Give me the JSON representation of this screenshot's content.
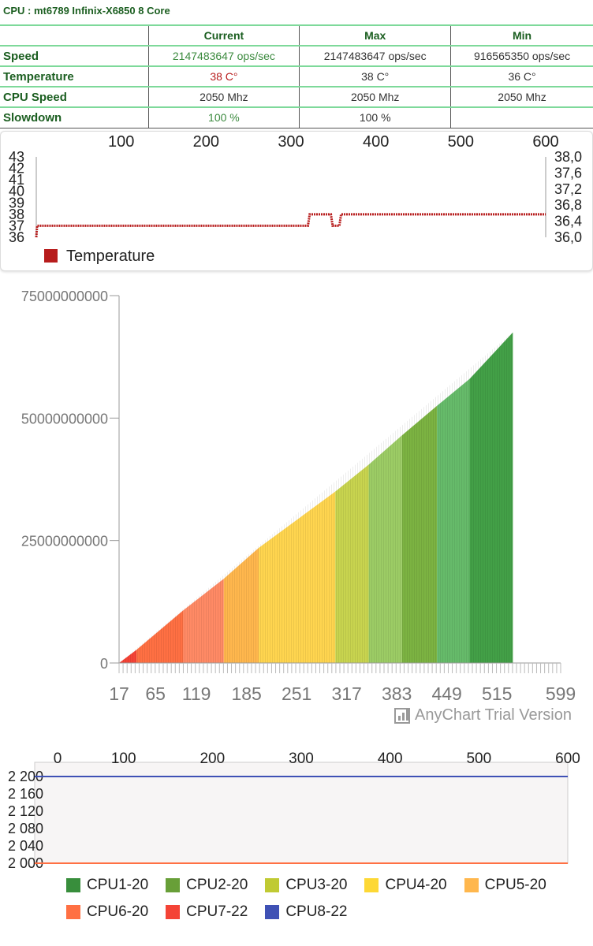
{
  "header": {
    "title": "CPU : mt6789 Infinix-X6850 8 Core"
  },
  "table": {
    "columns": [
      "",
      "Current",
      "Max",
      "Min"
    ],
    "rows": [
      {
        "label": "Speed",
        "current": "2147483647 ops/sec",
        "max": "2147483647 ops/sec",
        "min": "916565350 ops/sec"
      },
      {
        "label": "Temperature",
        "current": "38 C°",
        "max": "38 C°",
        "min": "36 C°"
      },
      {
        "label": "CPU Speed",
        "current": "2050 Mhz",
        "max": "2050 Mhz",
        "min": "2050 Mhz"
      },
      {
        "label": "Slowdown",
        "current": "100 %",
        "max": "100 %",
        "min": ""
      }
    ]
  },
  "watermark": {
    "text": "AnyChart Trial Version"
  },
  "chart_data": [
    {
      "type": "line",
      "x_ticks": [
        "100",
        "200",
        "300",
        "400",
        "500",
        "600"
      ],
      "xlim": [
        0,
        600
      ],
      "y_left_ticks": [
        "36",
        "37",
        "38",
        "39",
        "40",
        "41",
        "42",
        "43"
      ],
      "ylim_left": [
        36,
        43
      ],
      "y_right_ticks": [
        "36,0",
        "36,4",
        "36,8",
        "37,2",
        "37,6",
        "38,0"
      ],
      "ylim_right": [
        36.0,
        38.0
      ],
      "series": [
        {
          "name": "Temperature",
          "color": "#b71c1c",
          "points": [
            [
              0,
              36
            ],
            [
              1,
              37
            ],
            [
              320,
              37
            ],
            [
              322,
              38
            ],
            [
              347,
              38
            ],
            [
              349,
              37
            ],
            [
              357,
              37
            ],
            [
              359,
              38
            ],
            [
              600,
              38
            ]
          ]
        }
      ],
      "grid": false,
      "legend": "bottom-left"
    },
    {
      "type": "area",
      "x_ticks": [
        "17",
        "65",
        "119",
        "185",
        "251",
        "317",
        "383",
        "449",
        "515",
        "599"
      ],
      "xlim": [
        17,
        599
      ],
      "y_ticks": [
        "0",
        "25000000000",
        "50000000000",
        "75000000000"
      ],
      "ylim": [
        0,
        75000000000
      ],
      "series": [
        {
          "name": "CPU7-22",
          "color": "#f44336",
          "x": [
            17,
            40
          ],
          "values": [
            0,
            2700000000
          ]
        },
        {
          "name": "CPU6-20",
          "color": "#ff7043",
          "x": [
            40,
            102
          ],
          "values": [
            2700000000,
            10800000000
          ]
        },
        {
          "name": "CPU6-20",
          "color": "#ff8a65",
          "x": [
            102,
            155
          ],
          "values": [
            10800000000,
            17200000000
          ]
        },
        {
          "name": "CPU5-20",
          "color": "#ffb74d",
          "x": [
            155,
            201
          ],
          "values": [
            17200000000,
            23500000000
          ]
        },
        {
          "name": "CPU4-20",
          "color": "#ffd54f",
          "x": [
            201,
            302
          ],
          "values": [
            23500000000,
            35000000000
          ]
        },
        {
          "name": "CPU3-20",
          "color": "#c8d44f",
          "x": [
            302,
            346
          ],
          "values": [
            35000000000,
            40500000000
          ]
        },
        {
          "name": "CPU2-20",
          "color": "#9ccc65",
          "x": [
            346,
            390
          ],
          "values": [
            40500000000,
            46500000000
          ]
        },
        {
          "name": "CPU2-20",
          "color": "#7cb342",
          "x": [
            390,
            436
          ],
          "values": [
            46500000000,
            52500000000
          ]
        },
        {
          "name": "CPU1-20",
          "color": "#66bb6a",
          "x": [
            436,
            479
          ],
          "values": [
            52500000000,
            58000000000
          ]
        },
        {
          "name": "CPU1-20",
          "color": "#43a047",
          "x": [
            479,
            536
          ],
          "values": [
            58000000000,
            67500000000
          ]
        }
      ],
      "grid": false
    },
    {
      "type": "line",
      "x_ticks": [
        "0",
        "100",
        "200",
        "300",
        "400",
        "500",
        "600"
      ],
      "xlim": [
        0,
        600
      ],
      "y_ticks": [
        "2 000",
        "2 040",
        "2 080",
        "2 120",
        "2 160",
        "2 200"
      ],
      "ylim": [
        2000,
        2200
      ],
      "series": [
        {
          "name": "CPU1-20",
          "color": "#388e3c",
          "values": [
            2000,
            2000
          ]
        },
        {
          "name": "CPU2-20",
          "color": "#689f38",
          "values": [
            2000,
            2000
          ]
        },
        {
          "name": "CPU3-20",
          "color": "#c0ca33",
          "values": [
            2000,
            2000
          ]
        },
        {
          "name": "CPU4-20",
          "color": "#fdd835",
          "values": [
            2000,
            2000
          ]
        },
        {
          "name": "CPU5-20",
          "color": "#ffb74d",
          "values": [
            2000,
            2000
          ]
        },
        {
          "name": "CPU6-20",
          "color": "#ff7043",
          "values": [
            2000,
            2000
          ]
        },
        {
          "name": "CPU7-22",
          "color": "#f44336",
          "values": [
            2200,
            2200
          ]
        },
        {
          "name": "CPU8-22",
          "color": "#3f51b5",
          "values": [
            2200,
            2200
          ]
        }
      ],
      "legend": "bottom",
      "grid": false
    }
  ]
}
